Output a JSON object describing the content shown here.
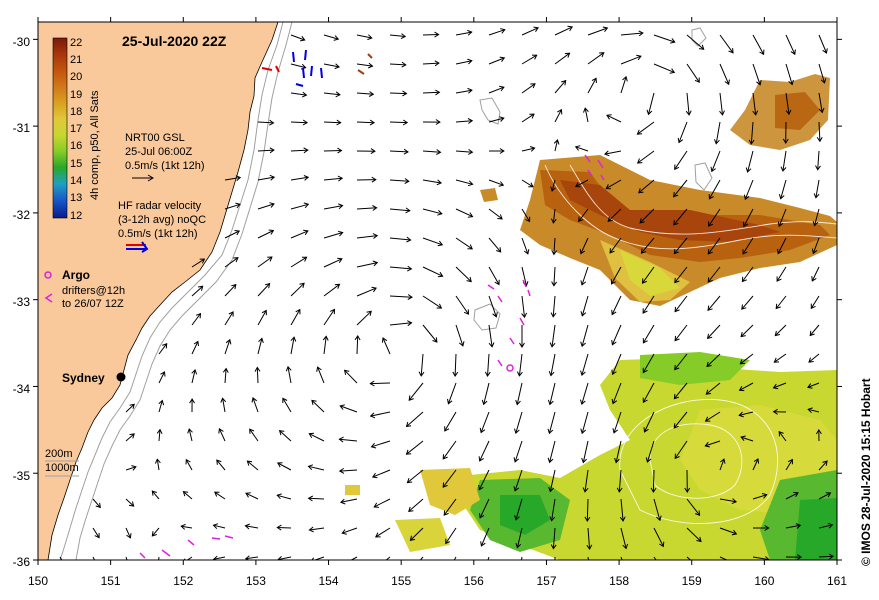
{
  "map": {
    "title": "25-Jul-2020 22Z",
    "lon_range": [
      150,
      161
    ],
    "lat_range": [
      -36,
      -29.8
    ],
    "x_ticks": [
      "150",
      "151",
      "152",
      "153",
      "154",
      "155",
      "156",
      "157",
      "158",
      "159",
      "160",
      "161"
    ],
    "y_ticks": [
      "-30",
      "-31",
      "-32",
      "-33",
      "-34",
      "-35",
      "-36"
    ],
    "credit": "© IMOS 28-Jul-2020 15:15 Hobart",
    "colors": {
      "land": "#f9c89b",
      "frame": "#000000",
      "isobath": "#a0a0a0"
    }
  },
  "colorbar": {
    "label": "4h comp, p50, All Sats",
    "ticks": [
      "22",
      "21",
      "20",
      "19",
      "18",
      "17",
      "16",
      "15",
      "14",
      "13",
      "12"
    ],
    "colors": [
      "#7a1a0a",
      "#a8350c",
      "#c2540f",
      "#d0781a",
      "#d9a020",
      "#e0c83a",
      "#c8d630",
      "#86cc28",
      "#28a828",
      "#20a0c0",
      "#1858c8",
      "#0a1a8c"
    ]
  },
  "legend": {
    "gsl_line1": "NRT00 GSL",
    "gsl_line2": "25-Jul 06:00Z",
    "gsl_line3": "0.5m/s (1kt 12h)",
    "hf_line1": "HF radar velocity",
    "hf_line2": "(3-12h avg) noQC",
    "hf_line3": "0.5m/s (1kt 12h)",
    "argo_label": "Argo",
    "drifters_line1": "drifters@12h",
    "drifters_line2": "to 26/07 12Z",
    "isobath_200": "200m",
    "isobath_1000": "1000m"
  },
  "places": [
    {
      "name": "Sydney",
      "lon": 151.21,
      "lat": -33.87
    }
  ]
}
